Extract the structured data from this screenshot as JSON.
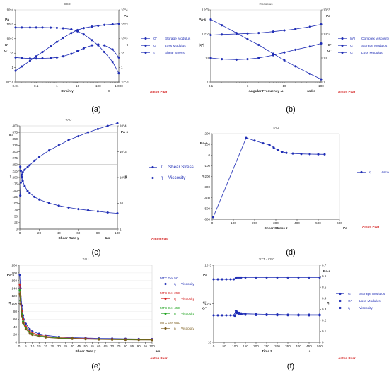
{
  "figure": {
    "panels": [
      "(a)",
      "(b)",
      "(c)",
      "(d)",
      "(e)",
      "(f)"
    ],
    "brand": "Anton Paar",
    "colors": {
      "series": "#1f2db5",
      "axis": "#333333",
      "grid": "#999999",
      "brand": "#d42020"
    }
  },
  "chart_data": [
    {
      "id": "a",
      "type": "line",
      "title": "CSD",
      "xlabel": "Strain γ",
      "xunit": "%",
      "xscale": "log",
      "xlim": [
        0.01,
        1000
      ],
      "xticks": [
        "0.01",
        "0.1",
        "1",
        "10",
        "100",
        "1,000"
      ],
      "y_left": {
        "unit": "Pa",
        "scale": "log",
        "lim": [
          0.1,
          10000
        ],
        "labels": [
          "G'",
          "G''"
        ]
      },
      "y_right": {
        "unit": "Pa",
        "scale": "log",
        "lim": [
          0.1,
          10000
        ],
        "labels": [
          "τ"
        ]
      },
      "legend": "right",
      "series": [
        {
          "name": "Storage Modulus",
          "symbol": "G'",
          "axis": "left",
          "x": [
            0.01,
            0.02,
            0.05,
            0.1,
            0.2,
            0.5,
            1,
            2,
            5,
            10,
            20,
            50,
            100,
            200,
            500,
            1000
          ],
          "y": [
            600,
            600,
            600,
            600,
            600,
            590,
            570,
            530,
            450,
            330,
            200,
            80,
            35,
            12,
            2.5,
            0.4
          ]
        },
        {
          "name": "Loss Modulus",
          "symbol": "G''",
          "axis": "left",
          "x": [
            0.01,
            0.02,
            0.05,
            0.1,
            0.2,
            0.5,
            1,
            2,
            5,
            10,
            20,
            50,
            100,
            200,
            500,
            1000
          ],
          "y": [
            5,
            4.6,
            4.3,
            4.3,
            4.4,
            4.6,
            5,
            6,
            9,
            14,
            22,
            35,
            40,
            35,
            18,
            5
          ]
        },
        {
          "name": "Shear Stress",
          "symbol": "τ",
          "axis": "right",
          "x": [
            0.01,
            0.02,
            0.05,
            0.1,
            0.2,
            0.5,
            1,
            2,
            5,
            10,
            20,
            50,
            100,
            200,
            500,
            1000
          ],
          "y": [
            0.6,
            1.2,
            3,
            6,
            12,
            30,
            60,
            115,
            250,
            400,
            550,
            700,
            800,
            900,
            1000,
            1100
          ]
        }
      ]
    },
    {
      "id": "b",
      "type": "line",
      "title": "Rheoplus",
      "xlabel": "Angular Frequency ω",
      "xunit": "rad/s",
      "xscale": "log",
      "xlim": [
        0.1,
        100
      ],
      "xticks": [
        "0.1",
        "1",
        "10",
        "100"
      ],
      "y_left": {
        "unit": "Pa·s",
        "scale": "log",
        "lim": [
          1,
          1000
        ],
        "labels": [
          "|η*|"
        ]
      },
      "y_right": {
        "unit": "Pa",
        "scale": "log",
        "lim": [
          1,
          1000
        ],
        "labels": [
          "G'",
          "G''"
        ]
      },
      "legend": "right",
      "series": [
        {
          "name": "Complex Viscosity",
          "symbol": "|η*|",
          "axis": "left",
          "x": [
            0.1,
            0.2,
            0.5,
            1,
            2,
            5,
            10,
            20,
            50,
            100
          ],
          "y": [
            400,
            230,
            110,
            60,
            35,
            15,
            8,
            4.5,
            2.2,
            1.3
          ]
        },
        {
          "name": "Storage Modulus",
          "symbol": "G'",
          "axis": "right",
          "x": [
            0.1,
            0.2,
            0.5,
            1,
            2,
            5,
            10,
            20,
            50,
            100
          ],
          "y": [
            90,
            95,
            100,
            105,
            110,
            125,
            140,
            160,
            200,
            250
          ]
        },
        {
          "name": "Loss Modulus",
          "symbol": "G''",
          "axis": "right",
          "x": [
            0.1,
            0.2,
            0.5,
            1,
            2,
            5,
            10,
            20,
            50,
            100
          ],
          "y": [
            10,
            9,
            8.5,
            9,
            10,
            13,
            17,
            22,
            30,
            40
          ]
        }
      ]
    },
    {
      "id": "c",
      "type": "line",
      "title": "TAU",
      "xlabel": "Shear Rate γ̇",
      "xunit": "1/s",
      "xscale": "linear",
      "xlim": [
        0,
        100
      ],
      "xticks": [
        "0",
        "20",
        "40",
        "60",
        "80",
        "100"
      ],
      "y_left": {
        "unit": "Pa",
        "scale": "linear",
        "lim": [
          0,
          400
        ],
        "labels": [
          "τ"
        ],
        "ticks": [
          "0",
          "25",
          "50",
          "75",
          "100",
          "125",
          "150",
          "175",
          "200",
          "225",
          "250",
          "275",
          "300",
          "325",
          "350",
          "375",
          "400"
        ]
      },
      "y_right": {
        "unit": "Pa·s",
        "scale": "log",
        "lim": [
          1,
          10000
        ],
        "labels": [
          "η"
        ]
      },
      "legend": "right",
      "series": [
        {
          "name": "Shear Stress",
          "symbol": "τ",
          "axis": "left",
          "x": [
            0.5,
            1,
            2,
            3,
            5,
            8,
            10,
            15,
            20,
            30,
            40,
            50,
            60,
            70,
            80,
            90,
            100
          ],
          "y": [
            130,
            180,
            210,
            220,
            230,
            240,
            247,
            265,
            280,
            305,
            325,
            345,
            360,
            375,
            388,
            400,
            410
          ]
        },
        {
          "name": "Viscosity",
          "symbol": "η",
          "axis": "right",
          "x": [
            0.5,
            1,
            2,
            3,
            5,
            8,
            10,
            15,
            20,
            30,
            40,
            50,
            60,
            70,
            80,
            90,
            100
          ],
          "y": [
            260,
            180,
            105,
            73,
            46,
            30,
            25,
            17.7,
            14,
            10.2,
            8.1,
            6.9,
            6,
            5.4,
            4.9,
            4.4,
            4.1
          ]
        }
      ]
    },
    {
      "id": "d",
      "type": "line",
      "title": "TAU",
      "xlabel": "Shear Stress τ",
      "xunit": "Pa",
      "xscale": "linear",
      "xlim": [
        0,
        600
      ],
      "xticks": [
        "0",
        "100",
        "200",
        "300",
        "400",
        "500",
        "600"
      ],
      "y_left": {
        "unit": "Pa·s",
        "scale": "linear",
        "lim": [
          -600,
          200
        ],
        "labels": [
          "η"
        ],
        "ticks": [
          "-600",
          "-500",
          "-400",
          "-300",
          "-200",
          "-100",
          "0",
          "100",
          "200"
        ]
      },
      "legend": "right",
      "series": [
        {
          "name": "Viscosity",
          "symbol": "η",
          "axis": "left",
          "x": [
            5,
            160,
            200,
            240,
            270,
            290,
            310,
            330,
            350,
            380,
            420,
            460,
            500,
            530
          ],
          "y": [
            -580,
            160,
            135,
            110,
            95,
            70,
            45,
            30,
            20,
            14,
            10,
            8,
            7,
            6
          ]
        }
      ]
    },
    {
      "id": "e",
      "type": "line",
      "title": "TAU",
      "xlabel": "Shear Rate γ",
      "xunit": "1/s",
      "xscale": "linear",
      "xlim": [
        0,
        100
      ],
      "xticks": [
        "0",
        "5",
        "10",
        "15",
        "20",
        "25",
        "30",
        "35",
        "40",
        "45",
        "50",
        "55",
        "60",
        "65",
        "70",
        "75",
        "80",
        "85",
        "90",
        "95",
        "100"
      ],
      "y_left": {
        "unit": "Pa·s",
        "scale": "linear",
        "lim": [
          0,
          200
        ],
        "labels": [
          "η"
        ],
        "ticks": [
          "0",
          "20",
          "40",
          "60",
          "80",
          "100",
          "120",
          "140",
          "160",
          "180",
          "200"
        ]
      },
      "legend": "right",
      "series": [
        {
          "name": "MTX Gel 5C",
          "symbol": "η",
          "legend_label": "Viscosity",
          "color": "#1f2db5",
          "x": [
            0.5,
            1,
            2,
            3,
            5,
            8,
            10,
            15,
            20,
            30,
            40,
            50,
            60,
            70,
            80,
            90,
            100
          ],
          "y": [
            175,
            140,
            95,
            70,
            48,
            34,
            28,
            22,
            18,
            14,
            12,
            11,
            10,
            9.5,
            9,
            8.5,
            8
          ]
        },
        {
          "name": "MTX Gel 25C",
          "symbol": "η",
          "legend_label": "Viscosity",
          "color": "#d42020",
          "x": [
            0.5,
            1,
            2,
            3,
            5,
            8,
            10,
            15,
            20,
            30,
            40,
            50,
            60,
            70,
            80,
            90,
            100
          ],
          "y": [
            150,
            120,
            82,
            60,
            41,
            29,
            24,
            19,
            15.5,
            12,
            10.5,
            9.5,
            8.5,
            8,
            7.5,
            7,
            6.8
          ]
        },
        {
          "name": "MTX Gel 45C",
          "symbol": "η",
          "legend_label": "Viscosity",
          "color": "#1fa31f",
          "x": [
            0.5,
            1,
            2,
            3,
            5,
            8,
            10,
            15,
            20,
            30,
            40,
            50,
            60,
            70,
            80,
            90,
            100
          ],
          "y": [
            135,
            108,
            74,
            54,
            37,
            26,
            21,
            17,
            14,
            11,
            9.5,
            8.5,
            7.8,
            7.2,
            6.8,
            6.4,
            6.1
          ]
        },
        {
          "name": "MTX Gel 65C",
          "symbol": "η",
          "legend_label": "Viscosity",
          "color": "#7a5a1a",
          "x": [
            0.5,
            1,
            2,
            3,
            5,
            8,
            10,
            15,
            20,
            30,
            40,
            50,
            60,
            70,
            80,
            90,
            100
          ],
          "y": [
            125,
            100,
            68,
            50,
            34,
            24,
            19,
            15.5,
            12.5,
            10,
            8.8,
            7.8,
            7.1,
            6.6,
            6.2,
            5.9,
            5.6
          ]
        }
      ]
    },
    {
      "id": "f",
      "type": "line",
      "title": "3ITT - CBC",
      "xlabel": "Time t",
      "xunit": "s",
      "xscale": "linear",
      "xlim": [
        0,
        500
      ],
      "xticks": [
        "0",
        "50",
        "100",
        "150",
        "200",
        "250",
        "300",
        "350",
        "400",
        "450",
        "500"
      ],
      "y_left": {
        "unit": "Pa",
        "scale": "log",
        "lim": [
          10,
          1000
        ],
        "labels": [
          "G'",
          "G''"
        ]
      },
      "y_right": {
        "unit": "Pa·s",
        "scale": "linear",
        "lim": [
          0,
          0.7
        ],
        "labels": [
          "η"
        ],
        "ticks": [
          "0",
          "0.1",
          "0.2",
          "0.3",
          "0.4",
          "0.5",
          "0.6",
          "0.7"
        ]
      },
      "legend": "right",
      "series": [
        {
          "name": "Storage Modulus",
          "symbol": "G'",
          "axis": "left",
          "x": [
            0,
            20,
            40,
            60,
            80,
            95,
            105,
            110,
            120,
            130,
            150,
            200,
            250,
            300,
            350,
            400,
            450,
            500
          ],
          "y": [
            430,
            430,
            430,
            430,
            430,
            430,
            470,
            480,
            480,
            480,
            480,
            480,
            480,
            480,
            480,
            480,
            480,
            480
          ]
        },
        {
          "name": "Loss Modulus",
          "symbol": "G''",
          "axis": "left",
          "x": [
            0,
            20,
            40,
            60,
            80,
            95,
            105,
            110,
            120,
            130,
            150,
            200,
            250,
            300,
            350,
            400,
            450,
            500
          ],
          "y": [
            50,
            50,
            50,
            50,
            50,
            50,
            65,
            62,
            58,
            56,
            55,
            54,
            53,
            53,
            52,
            52,
            52,
            52
          ]
        },
        {
          "name": "Viscosity",
          "symbol": "η",
          "axis": "right",
          "x": [
            100,
            105,
            110,
            120,
            130,
            150,
            200,
            250,
            300,
            350,
            400,
            450,
            500
          ],
          "y": [
            0.24,
            0.27,
            0.265,
            0.26,
            0.255,
            0.25,
            0.248,
            0.247,
            0.246,
            0.246,
            0.245,
            0.245,
            0.245
          ]
        }
      ]
    }
  ]
}
